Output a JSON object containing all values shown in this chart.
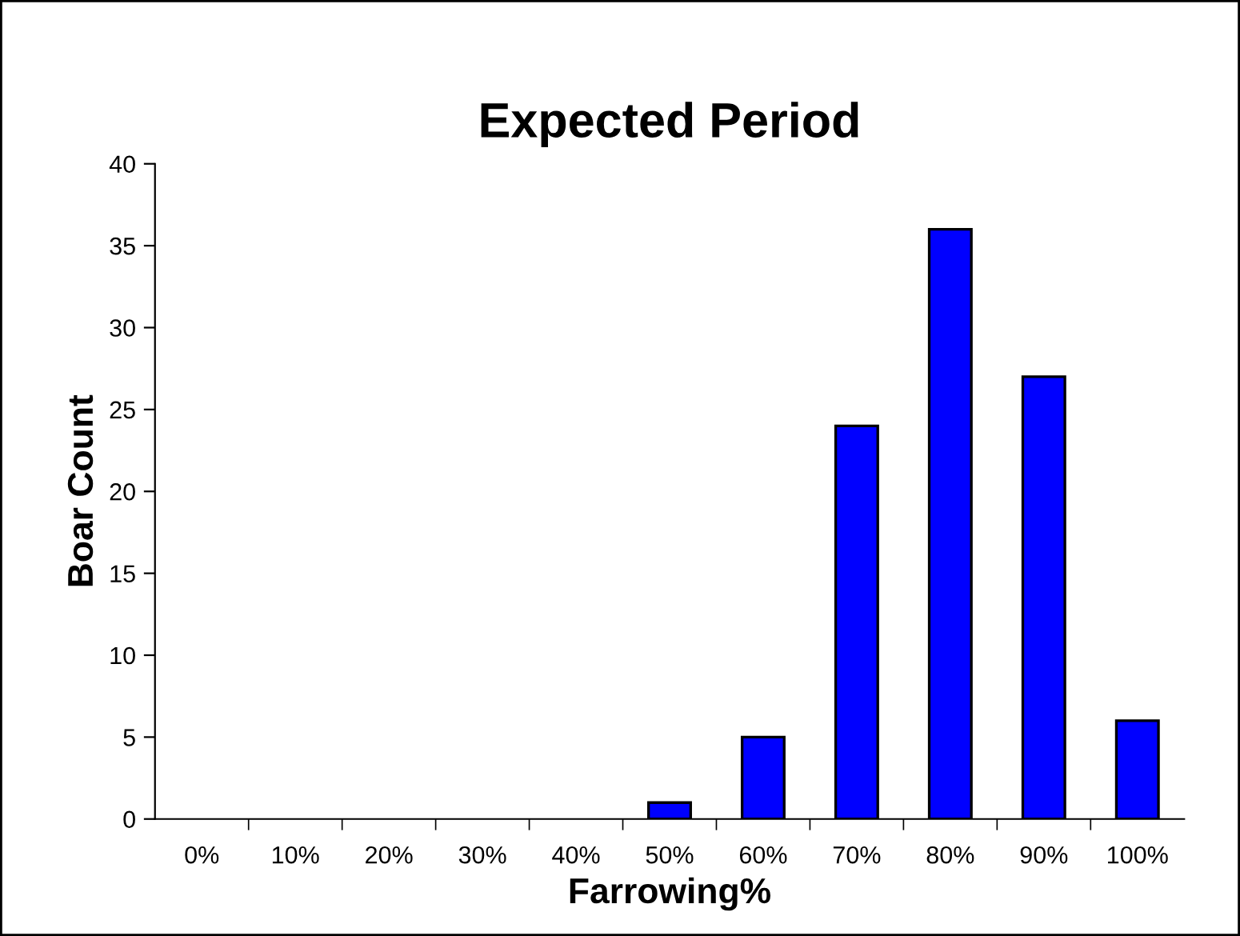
{
  "chart_data": {
    "type": "bar",
    "title": "Expected Period",
    "xlabel": "Farrowing%",
    "ylabel": "Boar Count",
    "categories": [
      "0%",
      "10%",
      "20%",
      "30%",
      "40%",
      "50%",
      "60%",
      "70%",
      "80%",
      "90%",
      "100%"
    ],
    "values": [
      0,
      0,
      0,
      0,
      0,
      1,
      5,
      24,
      36,
      27,
      6
    ],
    "color": "#0000ff",
    "ylim": [
      0,
      40
    ],
    "yticks": [
      0,
      5,
      10,
      15,
      20,
      25,
      30,
      35,
      40
    ],
    "grid": false,
    "legend": false
  }
}
